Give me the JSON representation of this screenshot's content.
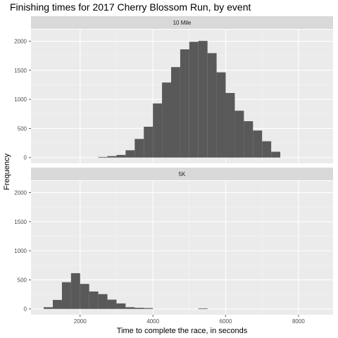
{
  "chart_data": {
    "type": "bar",
    "title": "Finishing times for 2017 Cherry Blossom Run, by event",
    "xlabel": "Time to complete the race, in seconds",
    "ylabel": "Frequency",
    "xlim": [
      650,
      8950
    ],
    "ylim": [
      -100,
      2200
    ],
    "x_ticks": [
      2000,
      4000,
      6000,
      8000
    ],
    "y_ticks": [
      0,
      500,
      1000,
      1500,
      2000
    ],
    "bin_width": 250,
    "bar_color": "#595959",
    "panel_background": "#ebebeb",
    "strip_background": "#d9d9d9",
    "grid": true,
    "panels": [
      {
        "label": "10 Mile",
        "bins": [
          {
            "x": 2625,
            "y": 10
          },
          {
            "x": 2875,
            "y": 25
          },
          {
            "x": 3125,
            "y": 45
          },
          {
            "x": 3375,
            "y": 125
          },
          {
            "x": 3625,
            "y": 320
          },
          {
            "x": 3875,
            "y": 530
          },
          {
            "x": 4125,
            "y": 930
          },
          {
            "x": 4375,
            "y": 1290
          },
          {
            "x": 4625,
            "y": 1555
          },
          {
            "x": 4875,
            "y": 1860
          },
          {
            "x": 5125,
            "y": 1990
          },
          {
            "x": 5375,
            "y": 2005
          },
          {
            "x": 5625,
            "y": 1795
          },
          {
            "x": 5875,
            "y": 1465
          },
          {
            "x": 6125,
            "y": 1110
          },
          {
            "x": 6375,
            "y": 805
          },
          {
            "x": 6625,
            "y": 625
          },
          {
            "x": 6875,
            "y": 465
          },
          {
            "x": 7125,
            "y": 280
          },
          {
            "x": 7375,
            "y": 100
          }
        ]
      },
      {
        "label": "5K",
        "bins": [
          {
            "x": 1125,
            "y": 30
          },
          {
            "x": 1375,
            "y": 155
          },
          {
            "x": 1625,
            "y": 460
          },
          {
            "x": 1875,
            "y": 615
          },
          {
            "x": 2125,
            "y": 430
          },
          {
            "x": 2375,
            "y": 300
          },
          {
            "x": 2625,
            "y": 255
          },
          {
            "x": 2875,
            "y": 160
          },
          {
            "x": 3125,
            "y": 95
          },
          {
            "x": 3375,
            "y": 30
          },
          {
            "x": 3625,
            "y": 20
          },
          {
            "x": 3875,
            "y": 15
          },
          {
            "x": 5375,
            "y": 10
          }
        ]
      }
    ]
  }
}
